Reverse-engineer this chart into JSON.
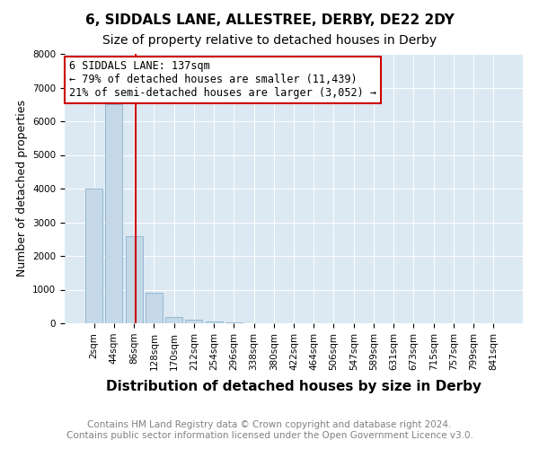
{
  "title": "6, SIDDALS LANE, ALLESTREE, DERBY, DE22 2DY",
  "subtitle": "Size of property relative to detached houses in Derby",
  "xlabel": "Distribution of detached houses by size in Derby",
  "ylabel": "Number of detached properties",
  "footer_line1": "Contains HM Land Registry data © Crown copyright and database right 2024.",
  "footer_line2": "Contains public sector information licensed under the Open Government Licence v3.0.",
  "bin_labels": [
    "2sqm",
    "44sqm",
    "86sqm",
    "128sqm",
    "170sqm",
    "212sqm",
    "254sqm",
    "296sqm",
    "338sqm",
    "380sqm",
    "422sqm",
    "464sqm",
    "506sqm",
    "547sqm",
    "589sqm",
    "631sqm",
    "673sqm",
    "715sqm",
    "757sqm",
    "799sqm",
    "841sqm"
  ],
  "bar_values": [
    4000,
    6500,
    2600,
    900,
    200,
    100,
    50,
    30,
    0,
    0,
    0,
    0,
    0,
    0,
    0,
    0,
    0,
    0,
    0,
    0,
    0
  ],
  "bar_color": "#c5d8e8",
  "bar_edge_color": "#7ba8c8",
  "annotation_text": "6 SIDDALS LANE: 137sqm\n← 79% of detached houses are smaller (11,439)\n21% of semi-detached houses are larger (3,052) →",
  "vline_x": 2.1,
  "vline_color": "#cc0000",
  "annotation_box_color": "#cc0000",
  "annotation_fontsize": 8.5,
  "ylim": [
    0,
    8000
  ],
  "yticks": [
    0,
    1000,
    2000,
    3000,
    4000,
    5000,
    6000,
    7000,
    8000
  ],
  "background_color": "#dce9f3",
  "title_fontsize": 11,
  "subtitle_fontsize": 10,
  "xlabel_fontsize": 11,
  "ylabel_fontsize": 9,
  "tick_fontsize": 7.5,
  "footer_fontsize": 7.5
}
